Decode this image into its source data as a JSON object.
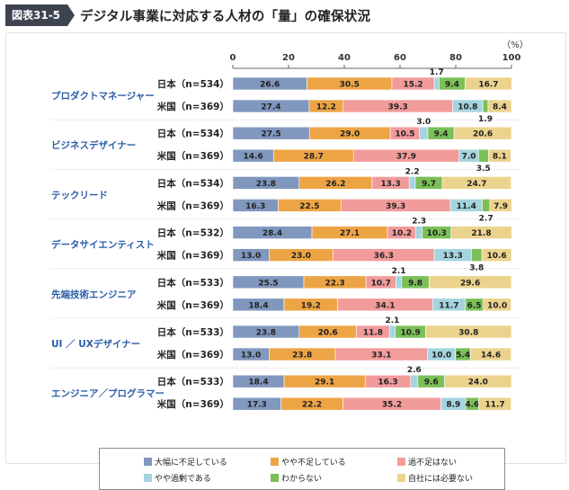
{
  "header": {
    "figure_label": "図表31-5",
    "title": "デジタル事業に対応する人材の「量」の確保状況"
  },
  "chart_data": {
    "type": "bar",
    "stacked": true,
    "orientation": "horizontal",
    "unit_label": "（%）",
    "xlim": [
      0,
      100
    ],
    "ticks": [
      0,
      20,
      40,
      60,
      80,
      100
    ],
    "grid": false,
    "legend_position": "bottom",
    "series": [
      {
        "name": "大幅に不足している",
        "color": "#8097be"
      },
      {
        "name": "やや不足している",
        "color": "#eda445"
      },
      {
        "name": "過不足はない",
        "color": "#f19b9b"
      },
      {
        "name": "やや過剰である",
        "color": "#a4d4df"
      },
      {
        "name": "わからない",
        "color": "#7abf57"
      },
      {
        "name": "自社には必要ない",
        "color": "#ecd38d"
      }
    ],
    "groups": [
      {
        "name": "プロダクトマネージャー",
        "rows": [
          {
            "label": "日本（n=534）",
            "values": [
              26.6,
              30.5,
              15.2,
              1.7,
              9.4,
              16.7
            ]
          },
          {
            "label": "米国（n=369）",
            "values": [
              27.4,
              12.2,
              39.3,
              10.8,
              1.9,
              8.4
            ]
          }
        ]
      },
      {
        "name": "ビジネスデザイナー",
        "rows": [
          {
            "label": "日本（n=534）",
            "values": [
              27.5,
              29.0,
              10.5,
              3.0,
              9.4,
              20.6
            ]
          },
          {
            "label": "米国（n=369）",
            "values": [
              14.6,
              28.7,
              37.9,
              7.0,
              3.5,
              8.1
            ]
          }
        ]
      },
      {
        "name": "テックリード",
        "rows": [
          {
            "label": "日本（n=534）",
            "values": [
              23.8,
              26.2,
              13.3,
              2.2,
              9.7,
              24.7
            ]
          },
          {
            "label": "米国（n=369）",
            "values": [
              16.3,
              22.5,
              39.3,
              11.4,
              2.7,
              7.9
            ]
          }
        ]
      },
      {
        "name": "データサイエンティスト",
        "rows": [
          {
            "label": "日本（n=532）",
            "values": [
              28.4,
              27.1,
              10.2,
              2.3,
              10.3,
              21.8
            ]
          },
          {
            "label": "米国（n=369）",
            "values": [
              13.0,
              23.0,
              36.3,
              13.3,
              3.8,
              10.6
            ]
          }
        ]
      },
      {
        "name": "先端技術エンジニア",
        "rows": [
          {
            "label": "日本（n=533）",
            "values": [
              25.5,
              22.3,
              10.7,
              2.1,
              9.8,
              29.6
            ]
          },
          {
            "label": "米国（n=369）",
            "values": [
              18.4,
              19.2,
              34.1,
              11.7,
              6.5,
              10.0
            ]
          }
        ]
      },
      {
        "name": "UI ／ UXデザイナー",
        "rows": [
          {
            "label": "日本（n=533）",
            "values": [
              23.8,
              20.6,
              11.8,
              2.1,
              10.9,
              30.8
            ]
          },
          {
            "label": "米国（n=369）",
            "values": [
              13.0,
              23.8,
              33.1,
              10.0,
              5.4,
              14.6
            ]
          }
        ]
      },
      {
        "name": "エンジニア／プログラマー",
        "rows": [
          {
            "label": "日本（n=533）",
            "values": [
              18.4,
              29.1,
              16.3,
              2.6,
              9.6,
              24.0
            ]
          },
          {
            "label": "米国（n=369）",
            "values": [
              17.3,
              22.2,
              35.2,
              8.9,
              4.6,
              11.7
            ]
          }
        ]
      }
    ]
  }
}
